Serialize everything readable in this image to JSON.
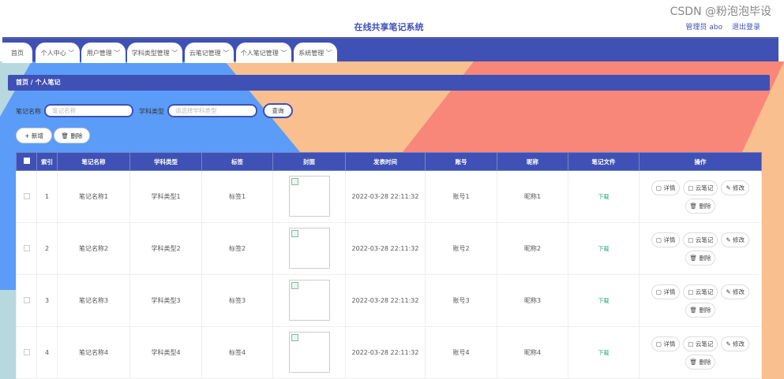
{
  "header": {
    "title": "在线共享笔记系统",
    "user": "管理员 abo",
    "logout": "退出登录"
  },
  "nav": [
    {
      "label": "首页"
    },
    {
      "label": "个人中心 ﹀"
    },
    {
      "label": "用户管理 ﹀"
    },
    {
      "label": "学科类型管理 ﹀"
    },
    {
      "label": "云笔记管理 ﹀"
    },
    {
      "label": "个人笔记管理 ﹀"
    },
    {
      "label": "系统管理 ﹀"
    }
  ],
  "breadcrumb": "首页 / 个人笔记",
  "search": {
    "name_label": "笔记名称",
    "name_placeholder": "笔记名称",
    "type_label": "学科类型",
    "type_placeholder": "请选择学科类型",
    "query": "查询"
  },
  "actions": {
    "add": "+ 新增",
    "delete": "🗑 删除"
  },
  "table": {
    "headers": [
      "索引",
      "笔记名称",
      "学科类型",
      "标签",
      "封面",
      "发表时间",
      "账号",
      "昵称",
      "笔记文件",
      "操作"
    ],
    "rows": [
      {
        "index": "1",
        "name": "笔记名称1",
        "type": "学科类型1",
        "tag": "标签1",
        "time": "2022-03-28 22:11:32",
        "account": "账号1",
        "nick": "昵称1",
        "file": "下载"
      },
      {
        "index": "2",
        "name": "笔记名称2",
        "type": "学科类型2",
        "tag": "标签2",
        "time": "2022-03-28 22:11:32",
        "account": "账号2",
        "nick": "昵称2",
        "file": "下载"
      },
      {
        "index": "3",
        "name": "笔记名称3",
        "type": "学科类型3",
        "tag": "标签3",
        "time": "2022-03-28 22:11:32",
        "account": "账号3",
        "nick": "昵称3",
        "file": "下载"
      },
      {
        "index": "4",
        "name": "笔记名称4",
        "type": "学科类型4",
        "tag": "标签4",
        "time": "2022-03-28 22:11:32",
        "account": "账号4",
        "nick": "昵称4",
        "file": "下载"
      }
    ],
    "ops": {
      "detail": "▢ 详情",
      "cloud": "▢ 云笔记",
      "edit": "✎ 修改",
      "delete": "🗑 删除"
    }
  },
  "watermark": "CSDN @粉泡泡毕设",
  "colors": {
    "primary": "#3f51b5",
    "blue": "#5b9cf8",
    "orange": "#f9bf8e",
    "salmon": "#f8877a"
  }
}
